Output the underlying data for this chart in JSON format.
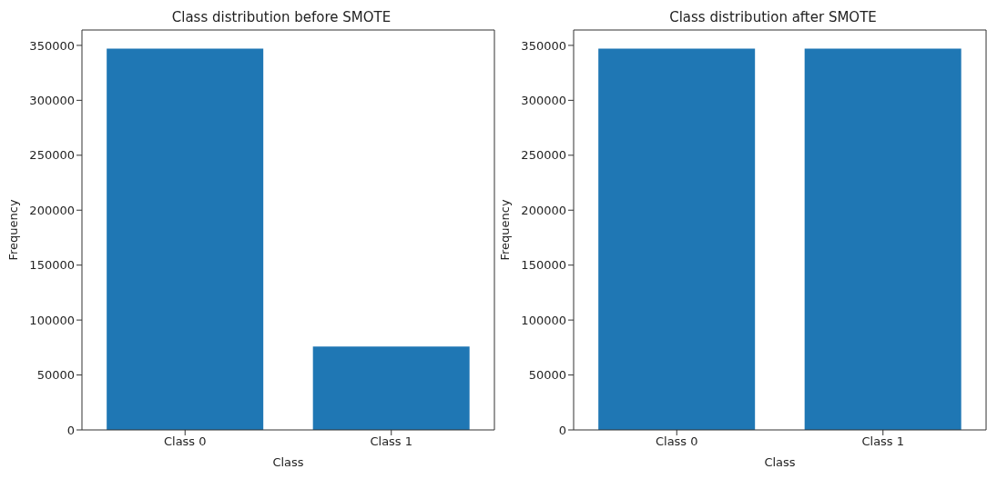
{
  "chart_data": [
    {
      "type": "bar",
      "title": "Class distribution before SMOTE",
      "xlabel": "Class",
      "ylabel": "Frequency",
      "categories": [
        "Class 0",
        "Class 1"
      ],
      "values": [
        347000,
        76000
      ],
      "color": "#1f77b4",
      "ylim": [
        0,
        364000
      ],
      "yticks": [
        0,
        50000,
        100000,
        150000,
        200000,
        250000,
        300000,
        350000
      ],
      "grid": false,
      "legend": false
    },
    {
      "type": "bar",
      "title": "Class distribution after SMOTE",
      "xlabel": "Class",
      "ylabel": "Frequency",
      "categories": [
        "Class 0",
        "Class 1"
      ],
      "values": [
        347000,
        347000
      ],
      "color": "#1f77b4",
      "ylim": [
        0,
        364000
      ],
      "yticks": [
        0,
        50000,
        100000,
        150000,
        200000,
        250000,
        300000,
        350000
      ],
      "grid": false,
      "legend": false
    }
  ]
}
